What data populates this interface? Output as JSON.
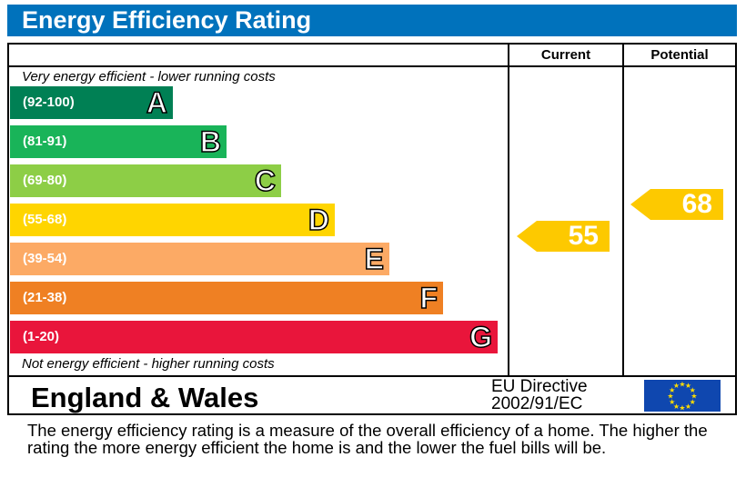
{
  "chart_data": {
    "type": "bar",
    "title": "Energy Efficiency Rating",
    "columns": [
      "Current",
      "Potential"
    ],
    "top_note": "Very energy efficient - lower running costs",
    "bottom_note": "Not energy efficient - higher running costs",
    "bands": [
      {
        "range": "(92-100)",
        "letter": "A",
        "color": "#008054"
      },
      {
        "range": "(81-91)",
        "letter": "B",
        "color": "#19b459"
      },
      {
        "range": "(69-80)",
        "letter": "C",
        "color": "#8dce46"
      },
      {
        "range": "(55-68)",
        "letter": "D",
        "color": "#ffd500"
      },
      {
        "range": "(39-54)",
        "letter": "E",
        "color": "#fcaa65"
      },
      {
        "range": "(21-38)",
        "letter": "F",
        "color": "#ef8023"
      },
      {
        "range": "(1-20)",
        "letter": "G",
        "color": "#e9153b"
      }
    ],
    "current": {
      "value": "55",
      "band": "D",
      "color": "#fdc900"
    },
    "potential": {
      "value": "68",
      "band": "D",
      "color": "#fdc900"
    }
  },
  "footer": {
    "region": "England & Wales",
    "directive_line1": "EU Directive",
    "directive_line2": "2002/91/EC",
    "flag_icon": "eu-flag-icon"
  },
  "description": "The energy efficiency rating is a measure of the overall efficiency of a home.  The higher the rating the more energy efficient the home is and the lower the fuel bills will be."
}
